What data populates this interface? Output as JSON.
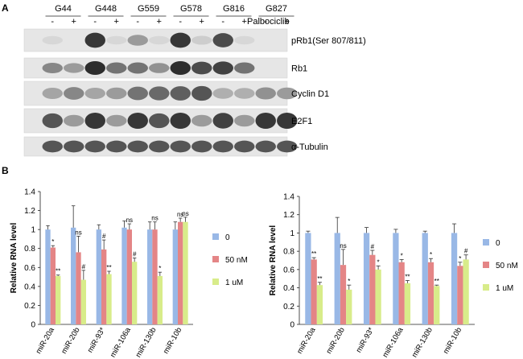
{
  "panel_a": {
    "label": "A",
    "cell_lines": [
      "G44",
      "G448",
      "G559",
      "G578",
      "G816",
      "G827"
    ],
    "lane_signs": [
      "-",
      "+"
    ],
    "treatment_label": "Palbociclib",
    "proteins": [
      {
        "name": "pRb1(Ser 807/811)",
        "bands": [
          0.05,
          0.0,
          0.85,
          0.05,
          0.35,
          0.05,
          0.85,
          0.1,
          0.75,
          0.05,
          0.0,
          0.0
        ]
      },
      {
        "name": "Rb1",
        "bands": [
          0.45,
          0.35,
          0.9,
          0.55,
          0.55,
          0.4,
          0.9,
          0.75,
          0.8,
          0.55,
          0.0,
          0.0
        ]
      },
      {
        "name": "Cyclin D1",
        "bands": [
          0.3,
          0.45,
          0.3,
          0.35,
          0.55,
          0.6,
          0.65,
          0.7,
          0.25,
          0.25,
          0.4,
          0.35
        ]
      },
      {
        "name": "E2F1",
        "bands": [
          0.7,
          0.35,
          0.85,
          0.35,
          0.85,
          0.7,
          0.85,
          0.35,
          0.8,
          0.35,
          0.85,
          0.85
        ]
      },
      {
        "name": "α-Tubulin",
        "bands": [
          0.7,
          0.7,
          0.7,
          0.7,
          0.7,
          0.7,
          0.7,
          0.7,
          0.7,
          0.7,
          0.7,
          0.7
        ]
      }
    ]
  },
  "panel_b": {
    "label": "B"
  },
  "colors": {
    "s0": "#99b8e6",
    "s50": "#e48586",
    "s1": "#d8ec8a"
  },
  "chart_data": [
    {
      "type": "bar",
      "categories": [
        "miR-20a",
        "miR-20b",
        "miR-93*",
        "miR-106a",
        "miR-130b",
        "miR-10b"
      ],
      "series": [
        {
          "name": "0",
          "values": [
            1.0,
            1.02,
            1.0,
            1.02,
            1.0,
            1.0
          ],
          "errors": [
            0.04,
            0.23,
            0.05,
            0.07,
            0.08,
            0.08
          ]
        },
        {
          "name": "50 nM",
          "values": [
            0.81,
            0.76,
            0.79,
            1.0,
            1.0,
            1.08
          ],
          "errors": [
            0.02,
            0.17,
            0.1,
            0.06,
            0.08,
            0.04
          ]
        },
        {
          "name": "1 uM",
          "values": [
            0.51,
            0.47,
            0.53,
            0.66,
            0.51,
            1.08
          ],
          "errors": [
            0.01,
            0.1,
            0.03,
            0.04,
            0.04,
            0.05
          ]
        }
      ],
      "annotations": [
        [
          "",
          "*",
          "**"
        ],
        [
          "",
          "ns",
          "#"
        ],
        [
          "",
          "#",
          "**"
        ],
        [
          "",
          "ns",
          "#"
        ],
        [
          "",
          "ns",
          "*"
        ],
        [
          "",
          "ns",
          "ns"
        ]
      ],
      "ylabel": "Relative RNA level",
      "ylim": [
        0,
        1.4
      ],
      "yticks": [
        "0",
        "0.2",
        "0.4",
        "0.6",
        "0.8",
        "1",
        "1.2",
        "1.4"
      ],
      "legend": "right"
    },
    {
      "type": "bar",
      "categories": [
        "miR-20a",
        "miR-20b",
        "miR-93*",
        "miR-106a",
        "miR-130b",
        "miR-10b"
      ],
      "series": [
        {
          "name": "0",
          "values": [
            1.0,
            1.0,
            1.0,
            1.0,
            1.0,
            1.0
          ],
          "errors": [
            0.02,
            0.17,
            0.06,
            0.04,
            0.02,
            0.1
          ]
        },
        {
          "name": "50 nM",
          "values": [
            0.71,
            0.65,
            0.76,
            0.68,
            0.68,
            0.64
          ],
          "errors": [
            0.02,
            0.17,
            0.05,
            0.03,
            0.04,
            0.04
          ]
        },
        {
          "name": "1 uM",
          "values": [
            0.43,
            0.38,
            0.6,
            0.45,
            0.42,
            0.71
          ],
          "errors": [
            0.03,
            0.05,
            0.04,
            0.03,
            0.01,
            0.05
          ]
        }
      ],
      "annotations": [
        [
          "",
          "**",
          "**"
        ],
        [
          "",
          "ns",
          "*"
        ],
        [
          "",
          "#",
          "*"
        ],
        [
          "",
          "*",
          "**"
        ],
        [
          "",
          "*",
          "**"
        ],
        [
          "",
          "*",
          "#"
        ]
      ],
      "ylabel": "Relative RNA level",
      "ylim": [
        0,
        1.4
      ],
      "yticks": [
        "0",
        "0.2",
        "0.4",
        "0.6",
        "0.8",
        "1",
        "1.2",
        "1.4"
      ],
      "legend": "right"
    }
  ]
}
